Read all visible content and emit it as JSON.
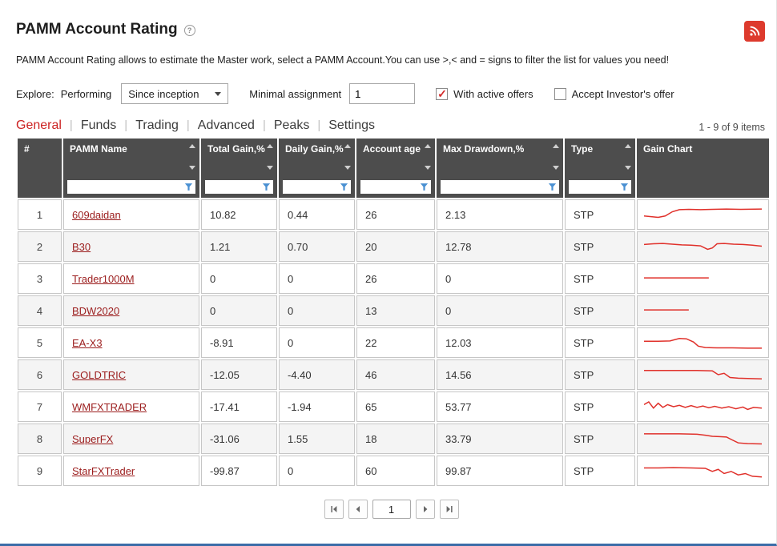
{
  "header": {
    "title": "PAMM Account Rating",
    "help_glyph": "?",
    "description": "PAMM Account Rating allows to estimate the Master work, select a PAMM Account.You can use >,< and = signs to filter the list for values you need!"
  },
  "filters": {
    "explore_label": "Explore:",
    "performing_label": "Performing",
    "period_value": "Since inception",
    "minimal_assignment_label": "Minimal assignment",
    "minimal_assignment_value": "1",
    "with_active_offers": {
      "label": "With active offers",
      "checked": true
    },
    "accept_investor_offer": {
      "label": "Accept Investor's offer",
      "checked": false
    }
  },
  "tabs": [
    {
      "label": "General",
      "active": true
    },
    {
      "label": "Funds",
      "active": false
    },
    {
      "label": "Trading",
      "active": false
    },
    {
      "label": "Advanced",
      "active": false
    },
    {
      "label": "Peaks",
      "active": false
    },
    {
      "label": "Settings",
      "active": false
    }
  ],
  "meta": {
    "items_count": "1 - 9 of 9 items"
  },
  "table": {
    "columns": [
      {
        "key": "index",
        "label": "#",
        "sortable": false,
        "filterable": false
      },
      {
        "key": "name",
        "label": "PAMM Name",
        "sortable": true,
        "filterable": true
      },
      {
        "key": "total_gain",
        "label": "Total Gain,%",
        "sortable": true,
        "filterable": true
      },
      {
        "key": "daily_gain",
        "label": "Daily Gain,%",
        "sortable": true,
        "filterable": true
      },
      {
        "key": "account_age",
        "label": "Account age",
        "sortable": true,
        "filterable": true
      },
      {
        "key": "max_drawdown",
        "label": "Max Drawdown,%",
        "sortable": true,
        "filterable": true
      },
      {
        "key": "type",
        "label": "Type",
        "sortable": true,
        "filterable": true
      },
      {
        "key": "gain_chart",
        "label": "Gain Chart",
        "sortable": false,
        "filterable": false
      }
    ],
    "rows": [
      {
        "index": "1",
        "name": "609daidan",
        "total_gain": "10.82",
        "daily_gain": "0.44",
        "account_age": "26",
        "max_drawdown": "2.13",
        "type": "STP",
        "spark": [
          [
            0,
            17
          ],
          [
            6,
            18
          ],
          [
            12,
            19
          ],
          [
            18,
            17
          ],
          [
            24,
            11
          ],
          [
            30,
            8
          ],
          [
            38,
            7.5
          ],
          [
            48,
            8
          ],
          [
            58,
            7.5
          ],
          [
            70,
            7
          ],
          [
            82,
            7.5
          ],
          [
            100,
            7
          ]
        ]
      },
      {
        "index": "2",
        "name": "B30",
        "total_gain": "1.21",
        "daily_gain": "0.70",
        "account_age": "20",
        "max_drawdown": "12.78",
        "type": "STP",
        "spark": [
          [
            0,
            12
          ],
          [
            8,
            11
          ],
          [
            16,
            10.5
          ],
          [
            24,
            11.5
          ],
          [
            32,
            12.5
          ],
          [
            40,
            13
          ],
          [
            48,
            14
          ],
          [
            54,
            19
          ],
          [
            58,
            17
          ],
          [
            62,
            11
          ],
          [
            68,
            10.5
          ],
          [
            76,
            11.5
          ],
          [
            84,
            12
          ],
          [
            92,
            13
          ],
          [
            100,
            14.5
          ]
        ]
      },
      {
        "index": "3",
        "name": "Trader1000M",
        "total_gain": "0",
        "daily_gain": "0",
        "account_age": "26",
        "max_drawdown": "0",
        "type": "STP",
        "spark": [
          [
            0,
            14
          ],
          [
            55,
            14
          ]
        ]
      },
      {
        "index": "4",
        "name": "BDW2020",
        "total_gain": "0",
        "daily_gain": "0",
        "account_age": "13",
        "max_drawdown": "0",
        "type": "STP",
        "spark": [
          [
            0,
            14
          ],
          [
            38,
            14
          ]
        ]
      },
      {
        "index": "5",
        "name": "EA-X3",
        "total_gain": "-8.91",
        "daily_gain": "0",
        "account_age": "22",
        "max_drawdown": "12.03",
        "type": "STP",
        "spark": [
          [
            0,
            13
          ],
          [
            12,
            13
          ],
          [
            22,
            12.5
          ],
          [
            30,
            9
          ],
          [
            36,
            9.5
          ],
          [
            42,
            14
          ],
          [
            46,
            20
          ],
          [
            52,
            22
          ],
          [
            62,
            22.5
          ],
          [
            75,
            22.5
          ],
          [
            88,
            23
          ],
          [
            100,
            23
          ]
        ]
      },
      {
        "index": "6",
        "name": "GOLDTRIC",
        "total_gain": "-12.05",
        "daily_gain": "-4.40",
        "account_age": "46",
        "max_drawdown": "14.56",
        "type": "STP",
        "spark": [
          [
            0,
            9
          ],
          [
            15,
            9
          ],
          [
            30,
            9
          ],
          [
            45,
            9
          ],
          [
            58,
            9.5
          ],
          [
            63,
            15
          ],
          [
            68,
            13
          ],
          [
            73,
            19
          ],
          [
            80,
            20
          ],
          [
            88,
            20.5
          ],
          [
            100,
            21
          ]
        ]
      },
      {
        "index": "7",
        "name": "WMFXTRADER",
        "total_gain": "-17.41",
        "daily_gain": "-1.94",
        "account_age": "65",
        "max_drawdown": "53.77",
        "type": "STP",
        "spark": [
          [
            0,
            12
          ],
          [
            4,
            8
          ],
          [
            8,
            17
          ],
          [
            12,
            10
          ],
          [
            16,
            16
          ],
          [
            20,
            12
          ],
          [
            25,
            15
          ],
          [
            30,
            13
          ],
          [
            35,
            16
          ],
          [
            40,
            13.5
          ],
          [
            45,
            16
          ],
          [
            50,
            14
          ],
          [
            55,
            16.5
          ],
          [
            60,
            14.5
          ],
          [
            66,
            17
          ],
          [
            72,
            15
          ],
          [
            78,
            18
          ],
          [
            84,
            15.5
          ],
          [
            88,
            19
          ],
          [
            93,
            16
          ],
          [
            100,
            17
          ]
        ]
      },
      {
        "index": "8",
        "name": "SuperFX",
        "total_gain": "-31.06",
        "daily_gain": "1.55",
        "account_age": "18",
        "max_drawdown": "33.79",
        "type": "STP",
        "spark": [
          [
            0,
            8
          ],
          [
            15,
            8
          ],
          [
            30,
            8
          ],
          [
            45,
            8.5
          ],
          [
            52,
            10
          ],
          [
            58,
            11.5
          ],
          [
            64,
            12
          ],
          [
            70,
            12.5
          ],
          [
            74,
            16
          ],
          [
            80,
            21
          ],
          [
            88,
            22
          ],
          [
            100,
            22.5
          ]
        ]
      },
      {
        "index": "9",
        "name": "StarFXTrader",
        "total_gain": "-99.87",
        "daily_gain": "0",
        "account_age": "60",
        "max_drawdown": "99.87",
        "type": "STP",
        "spark": [
          [
            0,
            11
          ],
          [
            12,
            11
          ],
          [
            25,
            10.5
          ],
          [
            40,
            11
          ],
          [
            52,
            11.5
          ],
          [
            58,
            16
          ],
          [
            63,
            13
          ],
          [
            68,
            19
          ],
          [
            74,
            16
          ],
          [
            80,
            21
          ],
          [
            86,
            19
          ],
          [
            92,
            23
          ],
          [
            100,
            24
          ]
        ]
      }
    ]
  },
  "pagination": {
    "page": "1",
    "first": "first-page",
    "prev": "previous-page",
    "next": "next-page",
    "last": "last-page"
  },
  "colors": {
    "accent_red": "#cc2222",
    "spark_line": "#e0302a",
    "header_bg": "#4d4d4d",
    "link_red": "#9b1c1c",
    "funnel_blue": "#4a90d2",
    "bottom_bar_blue": "#3b6ca8",
    "rss_red": "#dd3a2d"
  }
}
